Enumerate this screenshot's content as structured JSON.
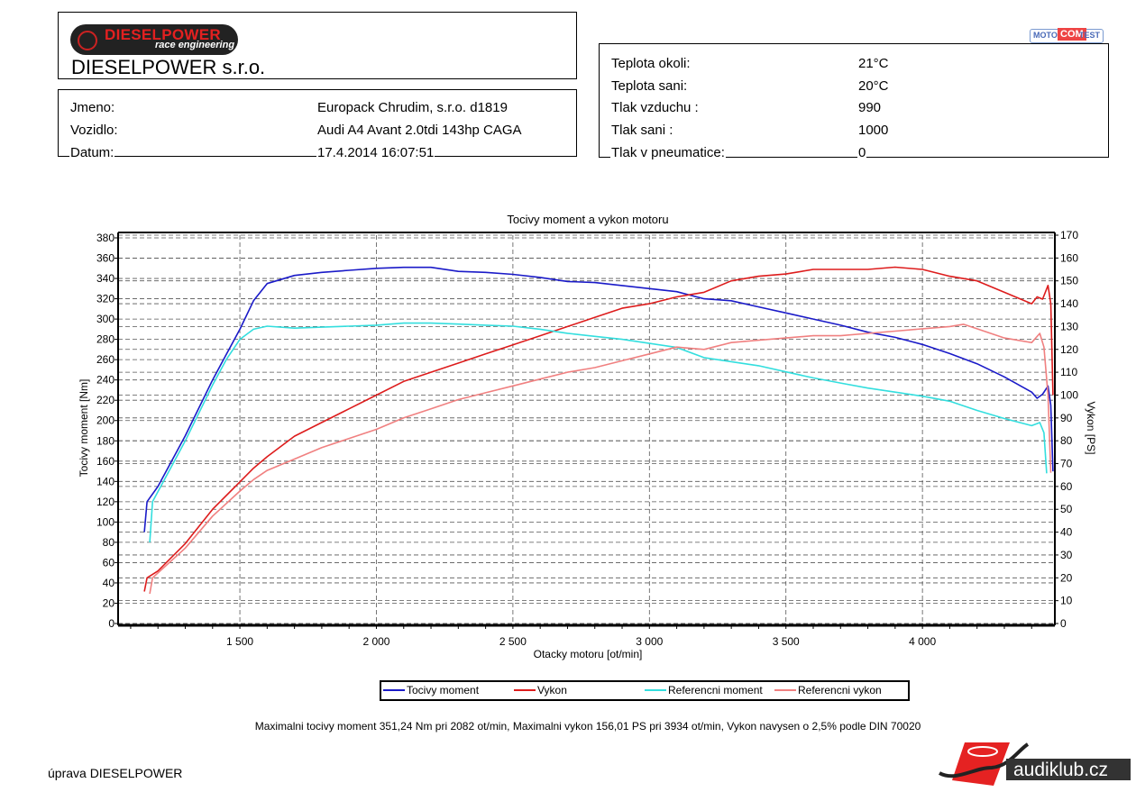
{
  "header": {
    "logo_brand": "DIESELPOWER",
    "logo_tagline": "race engineering",
    "company": "DIESELPOWER s.r.o.",
    "motocomtest_logo": [
      "MOTO",
      "COM",
      "TEST"
    ]
  },
  "customer": {
    "fields": [
      {
        "label": "Jmeno:",
        "value": "Europack Chrudim, s.r.o. d1819"
      },
      {
        "label": "Vozidlo:",
        "value": "Audi A4 Avant 2.0tdi 143hp CAGA"
      },
      {
        "label": "Datum:",
        "value": "17.4.2014 16:07:51"
      }
    ]
  },
  "conditions": {
    "fields": [
      {
        "label": "Teplota okoli:",
        "value": "21°C"
      },
      {
        "label": "Teplota sani:",
        "value": "20°C"
      },
      {
        "label": "Tlak vzduchu :",
        "value": "990"
      },
      {
        "label": "Tlak sani :",
        "value": "1000"
      },
      {
        "label": "Tlak v pneumatice:",
        "value": "0"
      }
    ]
  },
  "chart_data": {
    "type": "line",
    "title": "Tocivy moment a vykon motoru",
    "xlabel": "Otacky motoru [ot/min]",
    "ylabel_left": "Tocivy moment [Nm]",
    "ylabel_right": "Vykon [PS]",
    "xlim": [
      1054,
      4485
    ],
    "ylim_left": [
      0,
      380
    ],
    "ylim_right": [
      0,
      170
    ],
    "x_ticks": [
      "1 500",
      "2 000",
      "2 500",
      "3 000",
      "3 500",
      "4 000"
    ],
    "x_tick_values": [
      1500,
      2000,
      2500,
      3000,
      3500,
      4000
    ],
    "y_left_ticks": [
      0,
      20,
      40,
      60,
      80,
      100,
      120,
      140,
      160,
      180,
      200,
      220,
      240,
      260,
      280,
      300,
      320,
      340,
      360,
      380
    ],
    "y_right_ticks": [
      0,
      10,
      20,
      30,
      40,
      50,
      60,
      70,
      80,
      90,
      100,
      110,
      120,
      130,
      140,
      150,
      160,
      170
    ],
    "grid": true,
    "legend_position": "bottom",
    "series": [
      {
        "name": "Tocivy moment",
        "axis": "left",
        "color": "#1a1ac8",
        "points": [
          [
            1150,
            90
          ],
          [
            1160,
            120
          ],
          [
            1200,
            135
          ],
          [
            1300,
            185
          ],
          [
            1400,
            240
          ],
          [
            1450,
            265
          ],
          [
            1500,
            290
          ],
          [
            1550,
            318
          ],
          [
            1600,
            335
          ],
          [
            1700,
            343
          ],
          [
            1800,
            346
          ],
          [
            1900,
            348
          ],
          [
            2000,
            350
          ],
          [
            2100,
            351
          ],
          [
            2200,
            351
          ],
          [
            2300,
            347
          ],
          [
            2400,
            346
          ],
          [
            2500,
            344
          ],
          [
            2600,
            341
          ],
          [
            2700,
            337
          ],
          [
            2800,
            336
          ],
          [
            2900,
            333
          ],
          [
            3000,
            330
          ],
          [
            3100,
            327
          ],
          [
            3200,
            320
          ],
          [
            3300,
            318
          ],
          [
            3400,
            312
          ],
          [
            3500,
            306
          ],
          [
            3600,
            300
          ],
          [
            3700,
            294
          ],
          [
            3800,
            287
          ],
          [
            3900,
            282
          ],
          [
            4000,
            275
          ],
          [
            4100,
            266
          ],
          [
            4200,
            256
          ],
          [
            4300,
            243
          ],
          [
            4400,
            228
          ],
          [
            4420,
            222
          ],
          [
            4440,
            226
          ],
          [
            4460,
            234
          ],
          [
            4470,
            215
          ],
          [
            4478,
            150
          ]
        ]
      },
      {
        "name": "Vykon",
        "axis": "right",
        "color": "#dd1c1c",
        "points": [
          [
            1150,
            14
          ],
          [
            1160,
            20
          ],
          [
            1200,
            23
          ],
          [
            1300,
            35
          ],
          [
            1400,
            50
          ],
          [
            1500,
            62
          ],
          [
            1550,
            68
          ],
          [
            1600,
            73
          ],
          [
            1700,
            82
          ],
          [
            1800,
            88
          ],
          [
            1900,
            94
          ],
          [
            2000,
            100
          ],
          [
            2100,
            106
          ],
          [
            2200,
            110
          ],
          [
            2300,
            114
          ],
          [
            2400,
            118
          ],
          [
            2500,
            122
          ],
          [
            2600,
            126
          ],
          [
            2700,
            130
          ],
          [
            2800,
            134
          ],
          [
            2900,
            138
          ],
          [
            3000,
            140
          ],
          [
            3100,
            143
          ],
          [
            3200,
            145
          ],
          [
            3300,
            150
          ],
          [
            3400,
            152
          ],
          [
            3500,
            153
          ],
          [
            3600,
            155
          ],
          [
            3700,
            155
          ],
          [
            3800,
            155
          ],
          [
            3900,
            156
          ],
          [
            4000,
            155
          ],
          [
            4100,
            152
          ],
          [
            4200,
            150
          ],
          [
            4300,
            145
          ],
          [
            4400,
            140
          ],
          [
            4420,
            143
          ],
          [
            4440,
            142
          ],
          [
            4460,
            148
          ],
          [
            4470,
            140
          ],
          [
            4478,
            100
          ]
        ]
      },
      {
        "name": "Referencni moment",
        "axis": "left",
        "color": "#33dede",
        "points": [
          [
            1170,
            80
          ],
          [
            1180,
            120
          ],
          [
            1300,
            180
          ],
          [
            1400,
            235
          ],
          [
            1450,
            260
          ],
          [
            1500,
            280
          ],
          [
            1550,
            290
          ],
          [
            1600,
            293
          ],
          [
            1700,
            291
          ],
          [
            1800,
            292
          ],
          [
            1900,
            293
          ],
          [
            2000,
            294
          ],
          [
            2100,
            296
          ],
          [
            2200,
            296
          ],
          [
            2300,
            295
          ],
          [
            2400,
            294
          ],
          [
            2500,
            293
          ],
          [
            2600,
            290
          ],
          [
            2700,
            286
          ],
          [
            2800,
            283
          ],
          [
            2900,
            280
          ],
          [
            3000,
            276
          ],
          [
            3100,
            272
          ],
          [
            3200,
            262
          ],
          [
            3300,
            258
          ],
          [
            3400,
            254
          ],
          [
            3500,
            248
          ],
          [
            3600,
            242
          ],
          [
            3700,
            237
          ],
          [
            3800,
            232
          ],
          [
            3900,
            228
          ],
          [
            4000,
            224
          ],
          [
            4100,
            219
          ],
          [
            4200,
            210
          ],
          [
            4300,
            202
          ],
          [
            4400,
            195
          ],
          [
            4430,
            198
          ],
          [
            4445,
            188
          ],
          [
            4455,
            148
          ]
        ]
      },
      {
        "name": "Referencni vykon",
        "axis": "right",
        "color": "#f08080",
        "points": [
          [
            1170,
            13
          ],
          [
            1180,
            20
          ],
          [
            1300,
            33
          ],
          [
            1400,
            47
          ],
          [
            1500,
            58
          ],
          [
            1550,
            63
          ],
          [
            1600,
            67
          ],
          [
            1700,
            72
          ],
          [
            1800,
            77
          ],
          [
            1900,
            81
          ],
          [
            2000,
            85
          ],
          [
            2100,
            90
          ],
          [
            2200,
            94
          ],
          [
            2300,
            98
          ],
          [
            2400,
            101
          ],
          [
            2500,
            104
          ],
          [
            2600,
            107
          ],
          [
            2700,
            110
          ],
          [
            2800,
            112
          ],
          [
            2900,
            115
          ],
          [
            3000,
            118
          ],
          [
            3100,
            121
          ],
          [
            3200,
            120
          ],
          [
            3300,
            123
          ],
          [
            3400,
            124
          ],
          [
            3500,
            125
          ],
          [
            3600,
            126
          ],
          [
            3700,
            126
          ],
          [
            3800,
            127
          ],
          [
            3900,
            128
          ],
          [
            4000,
            129
          ],
          [
            4100,
            130
          ],
          [
            4150,
            131
          ],
          [
            4200,
            129
          ],
          [
            4300,
            125
          ],
          [
            4400,
            123
          ],
          [
            4430,
            127
          ],
          [
            4445,
            121
          ],
          [
            4460,
            100
          ],
          [
            4470,
            66
          ]
        ]
      }
    ]
  },
  "summary": "Maximalni tocivy moment 351,24 Nm pri 2082 ot/min,  Maximalni vykon 156,01 PS pri 3934 ot/min,  Vykon navysen o 2,5% podle DIN 70020",
  "footer": {
    "left_text": "úprava DIESELPOWER",
    "audiklub_logo": "audiklub.cz"
  }
}
